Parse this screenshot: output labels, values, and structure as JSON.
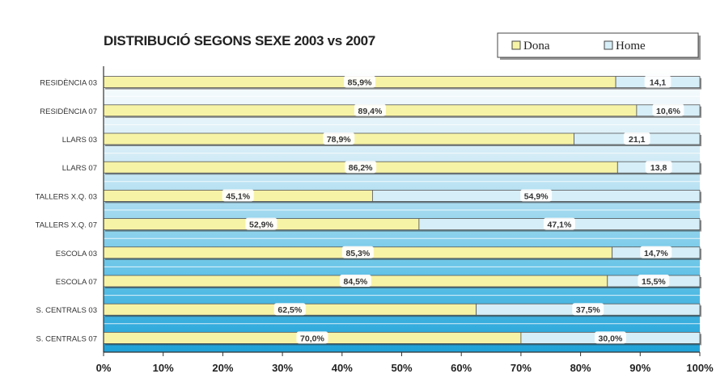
{
  "chart_data": {
    "type": "bar",
    "stacked": true,
    "orientation": "horizontal",
    "percent": true,
    "title": "DISTRIBUCIÓ SEGONS SEXE 2003 vs 2007",
    "xlabel": "",
    "ylabel": "",
    "xlim": [
      0,
      100
    ],
    "x_ticks": [
      "0%",
      "10%",
      "20%",
      "30%",
      "40%",
      "50%",
      "60%",
      "70%",
      "80%",
      "90%",
      "100%"
    ],
    "categories": [
      "RESIDÈNCIA 03",
      "RESIDÈNCIA 07",
      "LLARS 03",
      "LLARS 07",
      "TALLERS X.Q. 03",
      "TALLERS X.Q. 07",
      "ESCOLA 03",
      "ESCOLA 07",
      "S. CENTRALS 03",
      "S. CENTRALS 07"
    ],
    "series": [
      {
        "name": "Dona",
        "color": "#f7f3a6",
        "values": [
          85.9,
          89.4,
          78.9,
          86.2,
          45.1,
          52.9,
          85.3,
          84.5,
          62.5,
          70.0
        ],
        "labels": [
          "85,9%",
          "89,4%",
          "78,9%",
          "86,2%",
          "45,1%",
          "52,9%",
          "85,3%",
          "84,5%",
          "62,5%",
          "70,0%"
        ]
      },
      {
        "name": "Home",
        "color": "#d6eef7",
        "values": [
          14.1,
          10.6,
          21.1,
          13.8,
          54.9,
          47.1,
          14.7,
          15.5,
          37.5,
          30.0
        ],
        "labels": [
          "14,1",
          "10,6%",
          "21,1",
          "13,8",
          "54,9%",
          "47,1%",
          "14,7%",
          "15,5%",
          "37,5%",
          "30,0%"
        ]
      }
    ],
    "legend_position": "top-right",
    "grid": true,
    "background_gradient": [
      "#ffffff",
      "#1fa2d8"
    ]
  }
}
